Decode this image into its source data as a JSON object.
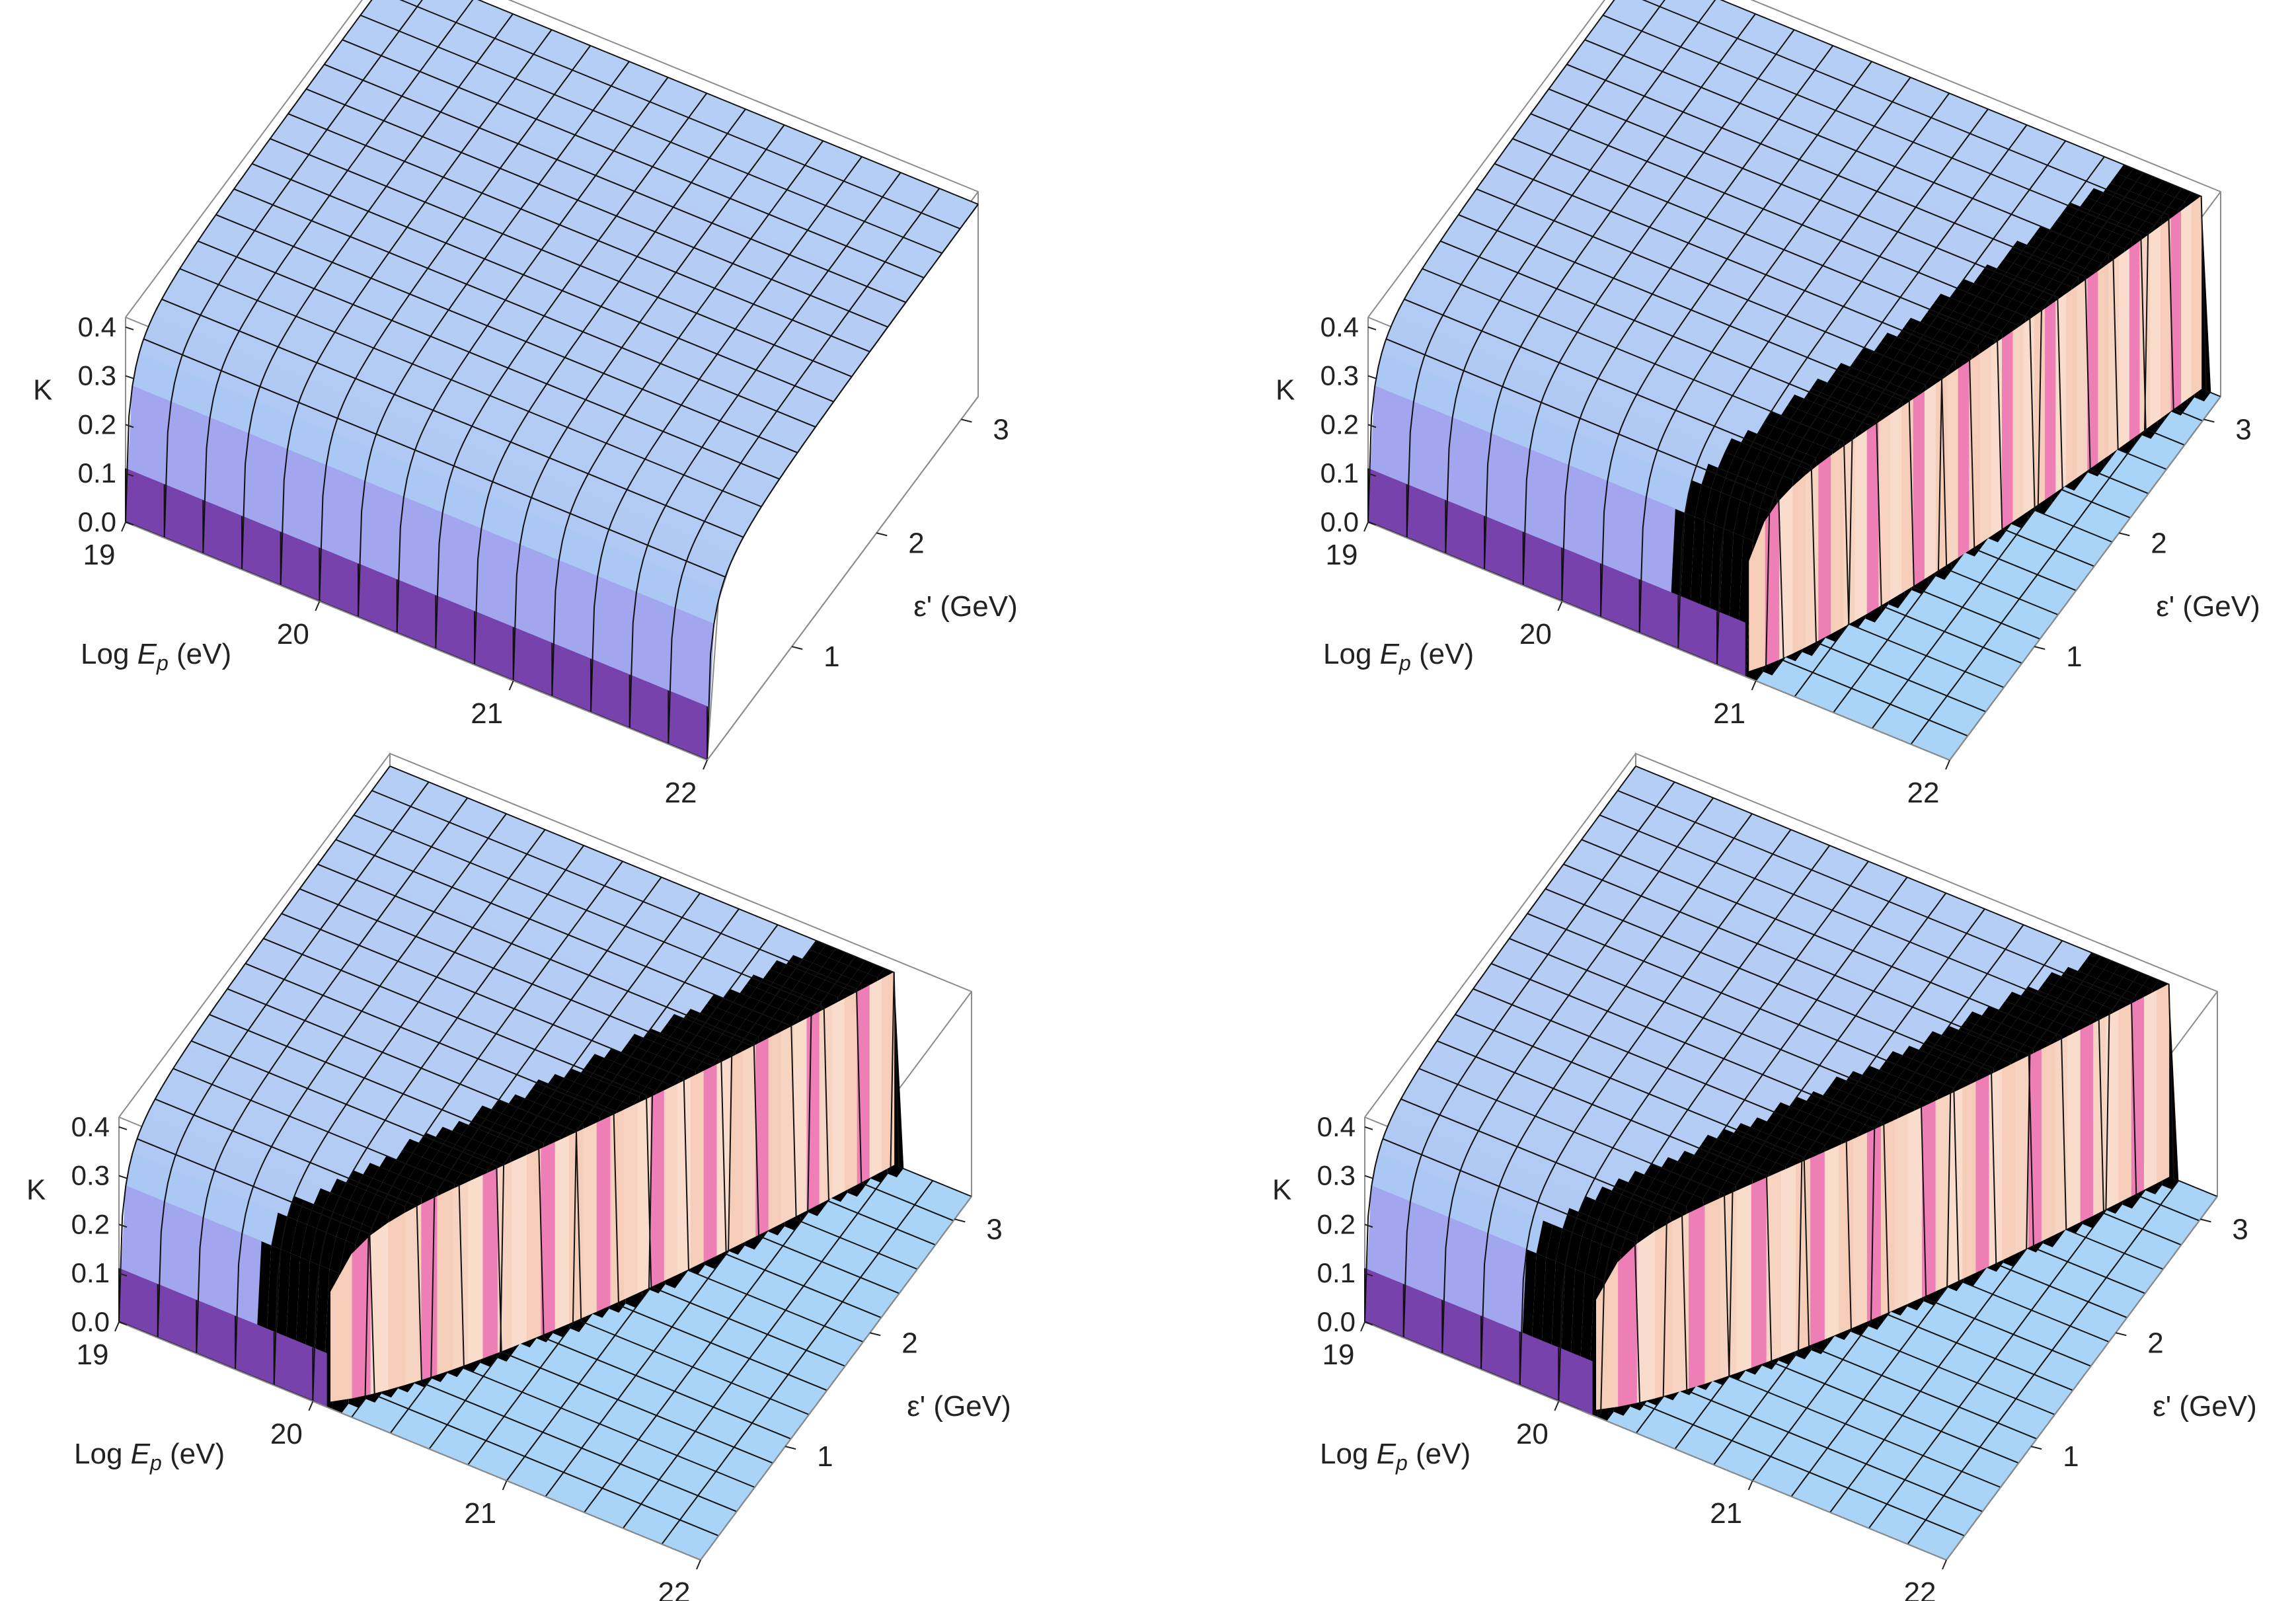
{
  "chart_data": [
    {
      "type": "surface3d",
      "panel": "top-left",
      "xlabel": {
        "prefix": "Log ",
        "var": "E",
        "sub": "p",
        "suffix": " (eV)"
      },
      "ylabel": "ε' (GeV)",
      "zlabel": "K",
      "x_ticks": [
        "19",
        "20",
        "21",
        "22"
      ],
      "y_ticks": [
        "1",
        "2",
        "3"
      ],
      "z_ticks": [
        "0.0",
        "0.1",
        "0.2",
        "0.3",
        "0.4"
      ],
      "x_range": [
        19,
        22
      ],
      "y_range": [
        0,
        3.2
      ],
      "z_range": [
        0,
        0.42
      ],
      "k_max": 0.4,
      "k_near_zero_eps": 0.11,
      "cutoff": null
    },
    {
      "type": "surface3d",
      "panel": "top-right",
      "xlabel": {
        "prefix": "Log ",
        "var": "E",
        "sub": "p",
        "suffix": " (eV)"
      },
      "ylabel": "ε' (GeV)",
      "zlabel": "K",
      "x_ticks": [
        "19",
        "20",
        "21",
        "22"
      ],
      "y_ticks": [
        "1",
        "2",
        "3"
      ],
      "z_ticks": [
        "0.0",
        "0.1",
        "0.2",
        "0.3",
        "0.4"
      ],
      "x_range": [
        19,
        22
      ],
      "y_range": [
        0,
        3.2
      ],
      "z_range": [
        0,
        0.42
      ],
      "k_max": 0.4,
      "k_near_zero_eps": 0.11,
      "cutoff": {
        "logE_at_eps0": 20.9,
        "logE_at_epsmax": 21.9,
        "curvature": 0.75
      }
    },
    {
      "type": "surface3d",
      "panel": "bottom-left",
      "xlabel": {
        "prefix": "Log ",
        "var": "E",
        "sub": "p",
        "suffix": " (eV)"
      },
      "ylabel": "ε' (GeV)",
      "zlabel": "K",
      "x_ticks": [
        "19",
        "20",
        "21",
        "22"
      ],
      "y_ticks": [
        "1",
        "2",
        "3"
      ],
      "z_ticks": [
        "0.0",
        "0.1",
        "0.2",
        "0.3",
        "0.4"
      ],
      "x_range": [
        19,
        22
      ],
      "y_range": [
        0,
        3.2
      ],
      "z_range": [
        0,
        0.42
      ],
      "k_max": 0.4,
      "k_near_zero_eps": 0.11,
      "cutoff": {
        "logE_at_eps0": 20.0,
        "logE_at_epsmax": 21.6,
        "curvature": 0.75
      }
    },
    {
      "type": "surface3d",
      "panel": "bottom-right",
      "xlabel": {
        "prefix": "Log ",
        "var": "E",
        "sub": "p",
        "suffix": " (eV)"
      },
      "ylabel": "ε' (GeV)",
      "zlabel": "K",
      "x_ticks": [
        "19",
        "20",
        "21",
        "22"
      ],
      "y_ticks": [
        "1",
        "2",
        "3"
      ],
      "z_ticks": [
        "0.0",
        "0.1",
        "0.2",
        "0.3",
        "0.4"
      ],
      "x_range": [
        19,
        22
      ],
      "y_range": [
        0,
        3.2
      ],
      "z_range": [
        0,
        0.42
      ],
      "k_max": 0.4,
      "k_near_zero_eps": 0.11,
      "cutoff": {
        "logE_at_eps0": 20.1,
        "logE_at_epsmax": 21.75,
        "curvature": 0.75
      }
    }
  ],
  "colors": {
    "surface_low": "#6a2c96",
    "surface_mid": "#9d83ea",
    "surface_high": "#a7c4f2",
    "cliff_peach": "#f5cdb8",
    "cliff_pink": "#ee7fb6",
    "floor": "#a9d4f7",
    "mesh": "#111111",
    "box": "#8c8c8c",
    "text": "#222222"
  }
}
